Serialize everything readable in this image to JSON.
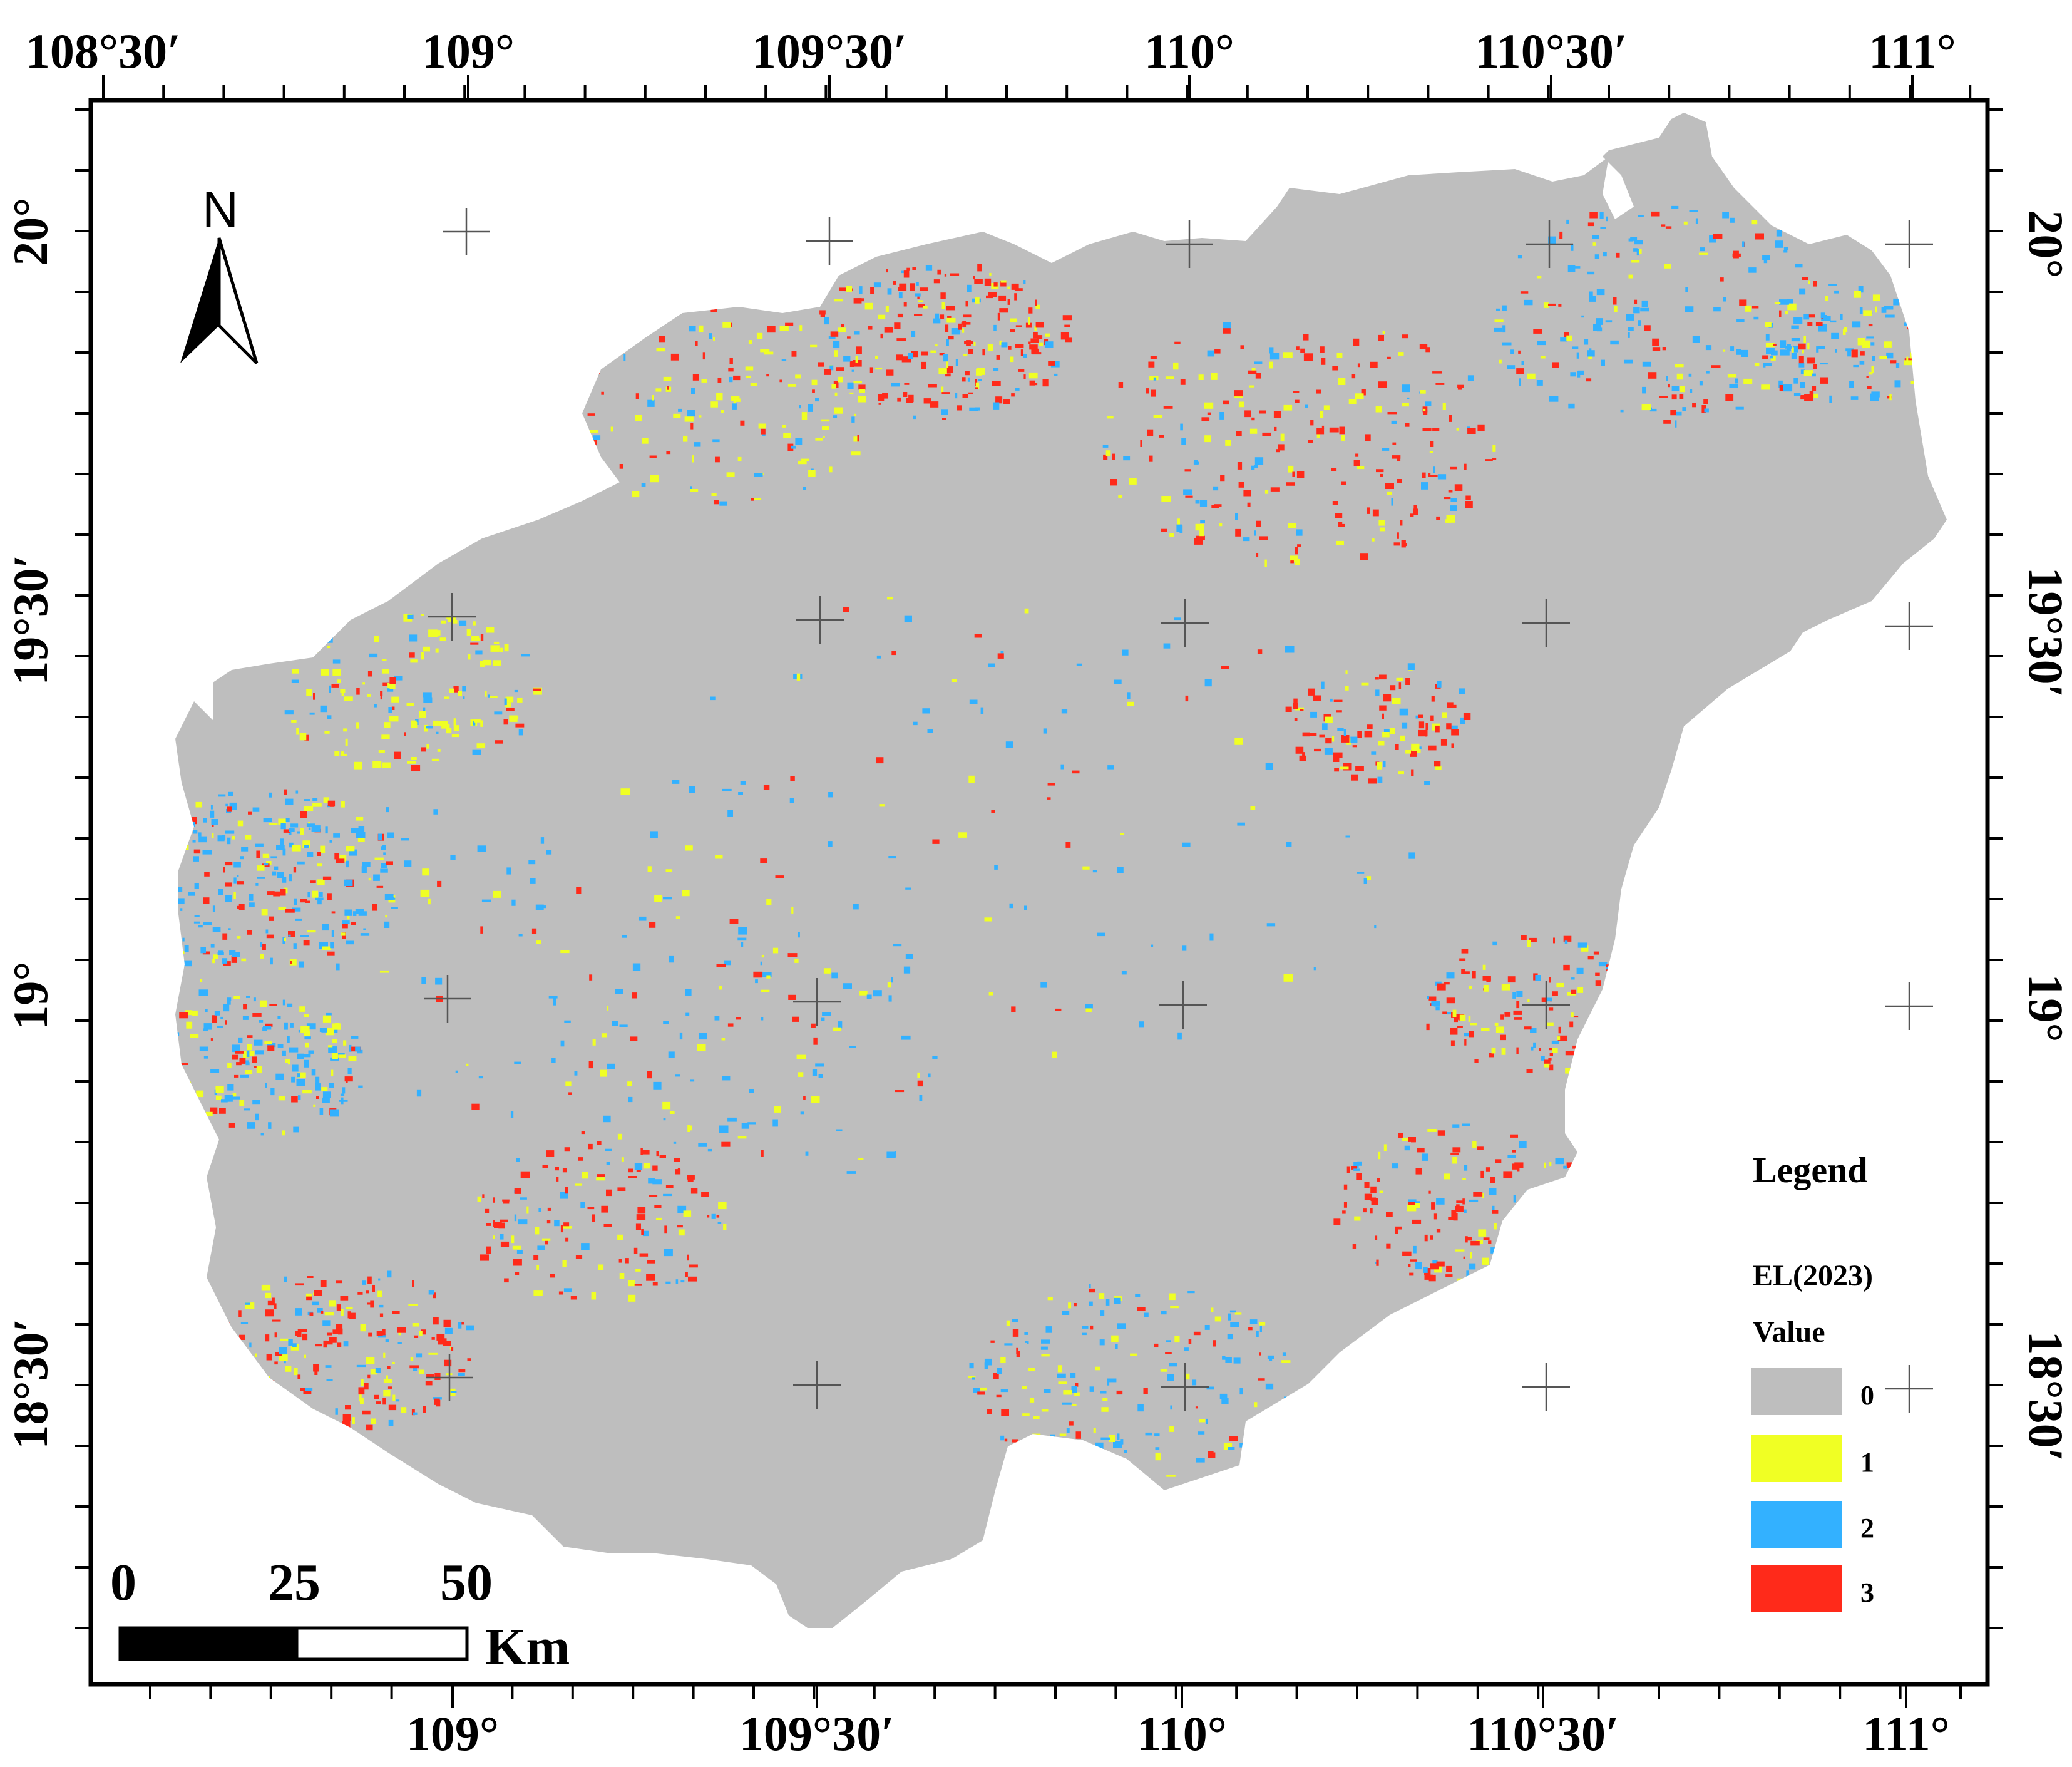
{
  "map": {
    "top_axis_labels": [
      "108°30′",
      "109°",
      "109°30′",
      "110°",
      "110°30′",
      "111°"
    ],
    "bottom_axis_labels": [
      "109°",
      "109°30′",
      "110°",
      "110°30′",
      "111°"
    ],
    "left_axis_labels": [
      "20°",
      "19°30′",
      "19°",
      "18°30′"
    ],
    "right_axis_labels": [
      "20°",
      "19°30′",
      "19°",
      "18°30′"
    ]
  },
  "north_arrow": {
    "label": "N"
  },
  "scale_bar": {
    "labels": [
      "0",
      "25",
      "50"
    ],
    "unit": "Km"
  },
  "legend": {
    "title": "Legend",
    "layer": "EL(2023)",
    "field": "Value",
    "items": [
      {
        "value": "0",
        "color": "#bebebe"
      },
      {
        "value": "1",
        "color": "#f0ff24"
      },
      {
        "value": "2",
        "color": "#33b1ff"
      },
      {
        "value": "3",
        "color": "#ff2a1a"
      }
    ]
  },
  "colors": {
    "land": "#bebebe",
    "class1": "#f0ff24",
    "class2": "#33b1ff",
    "class3": "#ff2a1a"
  }
}
